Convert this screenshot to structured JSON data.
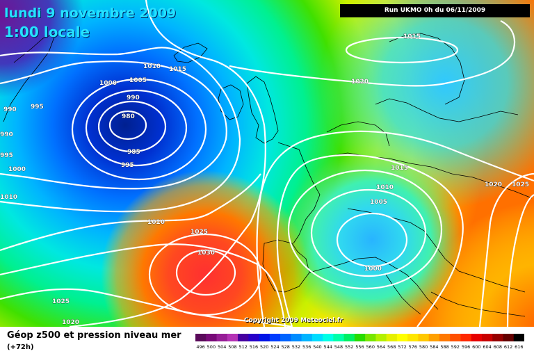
{
  "title": {
    "date": "lundi 9 novembre 2009",
    "time": "1:00 locale"
  },
  "run_info": "Run UKMO 0h du 06/11/2009",
  "copyright": "Copyright 2009 Meteociel.fr",
  "legend": {
    "title": "Géop z500 et pression niveau mer",
    "lead": "(+72h)",
    "scale_labels": [
      "496",
      "500",
      "504",
      "508",
      "512",
      "516",
      "520",
      "524",
      "528",
      "532",
      "536",
      "540",
      "544",
      "548",
      "552",
      "556",
      "560",
      "564",
      "568",
      "572",
      "576",
      "580",
      "584",
      "588",
      "592",
      "596",
      "600",
      "604",
      "608",
      "612",
      "616"
    ],
    "colors": [
      "#5a0a5a",
      "#780a78",
      "#961e96",
      "#b432b4",
      "#4600a0",
      "#2800c8",
      "#0014e6",
      "#003cff",
      "#0064ff",
      "#008cff",
      "#00b4ff",
      "#00dcff",
      "#00ffe6",
      "#00ffaa",
      "#00f064",
      "#28dc00",
      "#78e600",
      "#b4f000",
      "#e6f000",
      "#ffff00",
      "#ffe600",
      "#ffc800",
      "#ffa000",
      "#ff7800",
      "#ff5000",
      "#ff2800",
      "#e60000",
      "#c80000",
      "#960000",
      "#640000",
      "#000000"
    ]
  },
  "isobar_labels": [
    {
      "text": "1015"
    },
    {
      "text": "1020"
    },
    {
      "text": "1010"
    },
    {
      "text": "1015"
    },
    {
      "text": "1005"
    },
    {
      "text": "1000"
    },
    {
      "text": "990"
    },
    {
      "text": "980"
    },
    {
      "text": "985"
    },
    {
      "text": "995"
    },
    {
      "text": "995"
    },
    {
      "text": "990"
    },
    {
      "text": "990"
    },
    {
      "text": "995"
    },
    {
      "text": "1000"
    },
    {
      "text": "1010"
    },
    {
      "text": "1020"
    },
    {
      "text": "1025"
    },
    {
      "text": "1030"
    },
    {
      "text": "1025"
    },
    {
      "text": "1020"
    },
    {
      "text": "1015"
    },
    {
      "text": "1010"
    },
    {
      "text": "1005"
    },
    {
      "text": "1000"
    },
    {
      "text": "1020"
    },
    {
      "text": "1025"
    }
  ]
}
